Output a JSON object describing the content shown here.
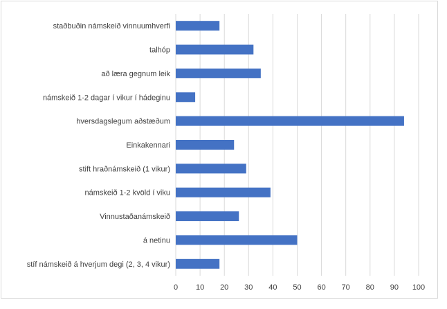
{
  "chart_data": {
    "type": "bar",
    "orientation": "horizontal",
    "categories": [
      "staðbuðin námskeið vinnuumhverfi",
      "talhóp",
      "að læra gegnum leik",
      "námskeið 1-2 dagar í vikur í hádeginu",
      "hversdagslegum aðstæðum",
      "Einkakennari",
      "stift hraðnámskeið (1 vikur)",
      "námskeið 1-2 kvöld í viku",
      "Vinnustaðanámskeið",
      "á netinu",
      "stíf námskeið á hverjum degi (2, 3, 4 vikur)"
    ],
    "values": [
      18,
      32,
      35,
      8,
      94,
      24,
      29,
      39,
      26,
      50,
      18
    ],
    "xlim": [
      0,
      100
    ],
    "x_ticks": [
      0,
      10,
      20,
      30,
      40,
      50,
      60,
      70,
      80,
      90,
      100
    ],
    "grid": "vertical",
    "bar_color": "#4472c4",
    "title": "",
    "xlabel": "",
    "ylabel": ""
  }
}
